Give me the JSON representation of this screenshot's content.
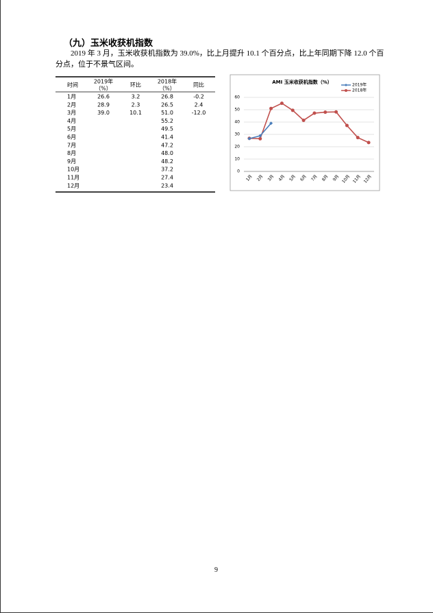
{
  "heading": "（九）玉米收获机指数",
  "paragraph": "2019 年 3 月，玉米收获机指数为 39.0%，比上月提升 10.1 个百分点，比上年同期下降 12.0 个百分点，位于不景气区间。",
  "table": {
    "headers": [
      [
        "时间"
      ],
      [
        "2019年",
        "（%）"
      ],
      [
        "环比"
      ],
      [
        "2018年",
        "（%）"
      ],
      [
        "同比"
      ]
    ],
    "rows": [
      [
        "1月",
        "26.6",
        "3.2",
        "26.8",
        "-0.2"
      ],
      [
        "2月",
        "28.9",
        "2.3",
        "26.5",
        "2.4"
      ],
      [
        "3月",
        "39.0",
        "10.1",
        "51.0",
        "-12.0"
      ],
      [
        "4月",
        null,
        null,
        "55.2",
        null
      ],
      [
        "5月",
        null,
        null,
        "49.5",
        null
      ],
      [
        "6月",
        null,
        null,
        "41.4",
        null
      ],
      [
        "7月",
        null,
        null,
        "47.2",
        null
      ],
      [
        "8月",
        null,
        null,
        "48.0",
        null
      ],
      [
        "9月",
        null,
        null,
        "48.2",
        null
      ],
      [
        "10月",
        null,
        null,
        "37.2",
        null
      ],
      [
        "11月",
        null,
        null,
        "27.4",
        null
      ],
      [
        "12月",
        null,
        null,
        "23.4",
        null
      ]
    ]
  },
  "chart_data": {
    "type": "line",
    "title": "AMI 玉米收获机指数（%）",
    "categories": [
      "1月",
      "2月",
      "3月",
      "4月",
      "5月",
      "6月",
      "7月",
      "8月",
      "9月",
      "10月",
      "11月",
      "12月"
    ],
    "series": [
      {
        "name": "2019年",
        "color": "#4a7ebb",
        "marker": "diamond",
        "values": [
          26.6,
          28.9,
          39.0,
          null,
          null,
          null,
          null,
          null,
          null,
          null,
          null,
          null
        ]
      },
      {
        "name": "2018年",
        "color": "#c0504d",
        "marker": "circle",
        "values": [
          26.8,
          26.5,
          51.0,
          55.2,
          49.5,
          41.4,
          47.2,
          48.0,
          48.2,
          37.2,
          27.4,
          23.4
        ]
      }
    ],
    "ylim": [
      0,
      60
    ],
    "yticks": [
      0,
      10,
      20,
      30,
      40,
      50,
      60
    ],
    "grid": true,
    "legend": "upper right"
  },
  "page_number": "9"
}
